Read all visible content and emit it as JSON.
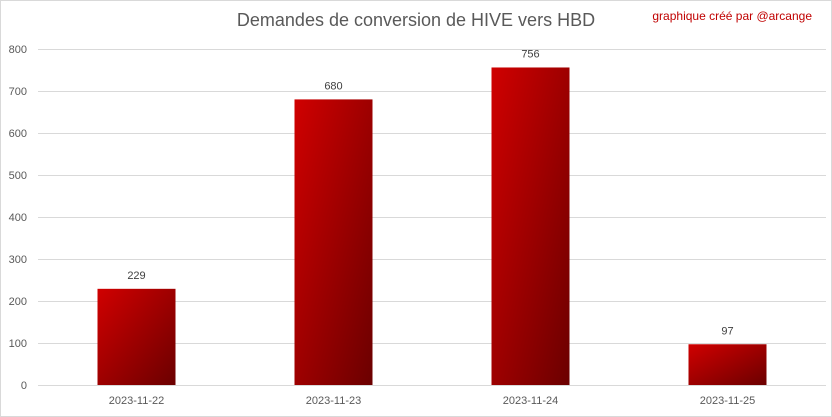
{
  "chart_data": {
    "type": "bar",
    "title": "Demandes de conversion de HIVE vers HBD",
    "credit": "graphique créé par @arcange",
    "categories": [
      "2023-11-22",
      "2023-11-23",
      "2023-11-24",
      "2023-11-25"
    ],
    "values": [
      229,
      680,
      756,
      97
    ],
    "ylim": [
      0,
      800
    ],
    "yticks": [
      0,
      100,
      200,
      300,
      400,
      500,
      600,
      700,
      800
    ],
    "grid": true,
    "data_labels": true,
    "colors": {
      "bar_light": "#d00000",
      "bar_dark": "#6b0000",
      "grid": "#d9d9d9",
      "credit": "#c00000"
    }
  }
}
